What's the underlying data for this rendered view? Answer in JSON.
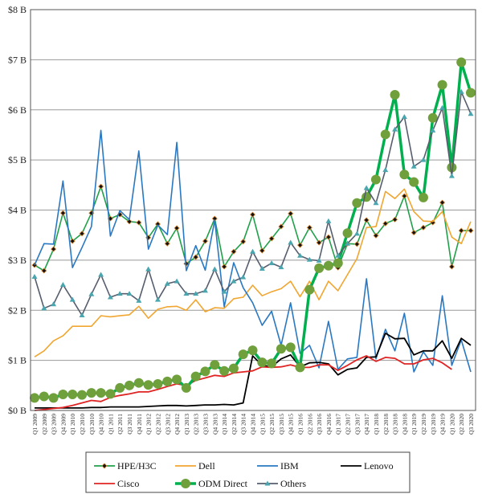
{
  "chart_data": {
    "type": "line",
    "title": "",
    "xlabel": "",
    "ylabel": "",
    "ylim": [
      0,
      8
    ],
    "y_ticks": [
      "$0 B",
      "$1 B",
      "$2 B",
      "$3 B",
      "$4 B",
      "$5 B",
      "$6 B",
      "$7 B",
      "$8 B"
    ],
    "grid": "horizontal",
    "legend_position": "bottom",
    "categories": [
      "Q1 2009",
      "Q2 2009",
      "Q3 2009",
      "Q4 2009",
      "Q1 2010",
      "Q2 2010",
      "Q3 2010",
      "Q4 2010",
      "Q1 2011",
      "Q2 2011",
      "Q3 2011",
      "Q4 2011",
      "Q1 2012",
      "Q2 2012",
      "Q3 2012",
      "Q4 2012",
      "Q1 2013",
      "Q2 2013",
      "Q3 2013",
      "Q4 2013",
      "Q1 2014",
      "Q2 2014",
      "Q3 2014",
      "Q4 2014",
      "Q1 2015",
      "Q2 2015",
      "Q3 2015",
      "Q4 2015",
      "Q1 2016",
      "Q2 2016",
      "Q3 2016",
      "Q4 2016",
      "Q1 2017",
      "Q2 2017",
      "Q3 2017",
      "Q4 2017",
      "Q1 2018",
      "Q2 2018",
      "Q3 2018",
      "Q4 2018",
      "Q1 2019",
      "Q2 2019",
      "Q3 2019",
      "Q4 2019",
      "Q1 2020",
      "Q2 2020",
      "Q3 2020"
    ],
    "series": [
      {
        "name": "HPE/H3C",
        "color": "#21a04a",
        "marker": "diamond",
        "values": [
          2.9,
          2.79,
          3.22,
          3.94,
          3.38,
          3.53,
          3.94,
          4.47,
          3.83,
          3.91,
          3.77,
          3.75,
          3.45,
          3.72,
          3.33,
          3.64,
          2.93,
          3.06,
          3.38,
          3.83,
          2.87,
          3.17,
          3.37,
          3.91,
          3.19,
          3.43,
          3.67,
          3.93,
          3.3,
          3.65,
          3.35,
          3.46,
          2.85,
          3.33,
          3.32,
          3.8,
          3.49,
          3.73,
          3.81,
          4.28,
          3.55,
          3.65,
          3.75,
          4.15,
          2.87,
          3.59,
          3.59
        ]
      },
      {
        "name": "Dell",
        "color": "#f0a630",
        "marker": "none",
        "values": [
          1.07,
          1.19,
          1.39,
          1.49,
          1.68,
          1.68,
          1.68,
          1.89,
          1.87,
          1.89,
          1.91,
          2.08,
          1.84,
          2.02,
          2.07,
          2.08,
          2.0,
          2.21,
          1.97,
          2.05,
          2.04,
          2.23,
          2.26,
          2.5,
          2.29,
          2.37,
          2.43,
          2.58,
          2.27,
          2.58,
          2.21,
          2.58,
          2.39,
          2.71,
          3.03,
          3.65,
          3.67,
          4.37,
          4.23,
          4.42,
          3.97,
          3.78,
          3.77,
          3.97,
          3.46,
          3.33,
          3.77
        ]
      },
      {
        "name": "IBM",
        "color": "#2a78c2",
        "marker": "none",
        "values": [
          2.9,
          3.33,
          3.32,
          4.58,
          2.85,
          3.25,
          3.67,
          5.59,
          3.48,
          3.99,
          3.81,
          5.18,
          3.22,
          3.7,
          3.51,
          5.35,
          2.79,
          3.29,
          2.8,
          3.8,
          2.07,
          2.95,
          2.45,
          2.15,
          1.7,
          1.98,
          1.3,
          2.15,
          1.14,
          1.3,
          0.85,
          1.78,
          0.82,
          1.03,
          1.06,
          2.63,
          1.03,
          1.62,
          1.19,
          1.94,
          0.77,
          1.17,
          0.9,
          2.29,
          0.9,
          1.41,
          0.77
        ]
      },
      {
        "name": "Lenovo",
        "color": "#000000",
        "marker": "none",
        "values": [
          0.05,
          0.05,
          0.05,
          0.05,
          0.05,
          0.05,
          0.06,
          0.06,
          0.07,
          0.07,
          0.07,
          0.07,
          0.08,
          0.09,
          0.1,
          0.1,
          0.09,
          0.1,
          0.11,
          0.11,
          0.12,
          0.11,
          0.15,
          1.09,
          0.9,
          0.87,
          1.03,
          1.11,
          0.87,
          0.95,
          0.96,
          0.93,
          0.71,
          0.82,
          0.85,
          1.06,
          1.07,
          1.54,
          1.43,
          1.44,
          1.11,
          1.19,
          1.19,
          1.39,
          1.04,
          1.44,
          1.3
        ]
      },
      {
        "name": "Cisco",
        "color": "#e02424",
        "marker": "none",
        "values": [
          0.0,
          0.02,
          0.04,
          0.06,
          0.1,
          0.15,
          0.2,
          0.18,
          0.26,
          0.3,
          0.33,
          0.37,
          0.37,
          0.42,
          0.48,
          0.53,
          0.5,
          0.6,
          0.65,
          0.7,
          0.68,
          0.75,
          0.77,
          0.79,
          0.87,
          0.86,
          0.87,
          0.91,
          0.86,
          0.86,
          0.91,
          0.91,
          0.8,
          0.9,
          1.01,
          1.09,
          0.98,
          1.06,
          1.04,
          0.93,
          0.93,
          1.01,
          1.04,
          0.95,
          0.82,
          null,
          null
        ]
      },
      {
        "name": "ODM Direct",
        "color": "#00b04e",
        "marker_color": "#6fa03c",
        "marker": "circle",
        "values": [
          0.25,
          0.28,
          0.25,
          0.32,
          0.32,
          0.31,
          0.35,
          0.35,
          0.33,
          0.45,
          0.5,
          0.55,
          0.51,
          0.53,
          0.58,
          0.62,
          0.45,
          0.68,
          0.78,
          0.91,
          0.79,
          0.84,
          1.12,
          1.2,
          0.96,
          0.94,
          1.23,
          1.26,
          0.86,
          2.41,
          2.84,
          2.89,
          2.94,
          3.54,
          4.14,
          4.26,
          4.61,
          5.51,
          6.3,
          4.71,
          4.56,
          4.25,
          5.84,
          6.5,
          4.85,
          6.95,
          6.34
        ]
      },
      {
        "name": "Others",
        "color": "#565e6e",
        "marker_color": "#4aa6ae",
        "marker": "triangle",
        "values": [
          2.67,
          2.04,
          2.12,
          2.51,
          2.21,
          1.9,
          2.32,
          2.71,
          2.26,
          2.33,
          2.33,
          2.19,
          2.82,
          2.21,
          2.53,
          2.58,
          2.33,
          2.33,
          2.39,
          2.82,
          2.37,
          2.58,
          2.66,
          3.17,
          2.83,
          2.94,
          2.86,
          3.35,
          3.09,
          3.01,
          2.99,
          3.78,
          3.09,
          3.33,
          3.53,
          4.44,
          4.14,
          4.8,
          5.61,
          5.86,
          4.87,
          5.0,
          5.59,
          6.04,
          4.68,
          6.36,
          5.92
        ]
      }
    ]
  }
}
